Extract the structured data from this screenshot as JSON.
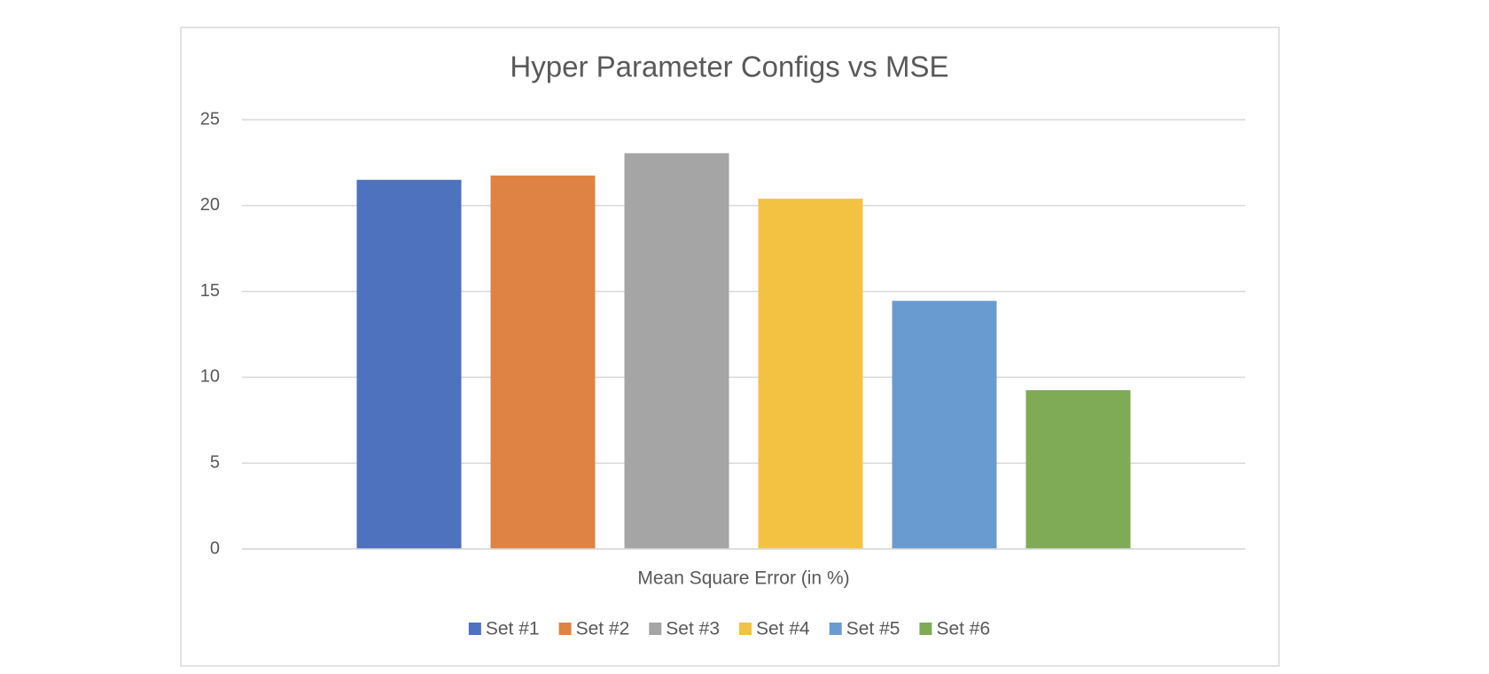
{
  "chart_data": {
    "type": "bar",
    "title": "Hyper Parameter Configs vs MSE",
    "categories": [
      "Mean Square Error (in %)"
    ],
    "series": [
      {
        "name": "Set #1",
        "color": "#4f72be",
        "values": [
          21.5
        ]
      },
      {
        "name": "Set #2",
        "color": "#de8344",
        "values": [
          21.75
        ]
      },
      {
        "name": "Set #3",
        "color": "#a5a5a5",
        "values": [
          23.05
        ]
      },
      {
        "name": "Set #4",
        "color": "#f4c243",
        "values": [
          20.4
        ]
      },
      {
        "name": "Set #5",
        "color": "#6a9bd0",
        "values": [
          14.45
        ]
      },
      {
        "name": "Set #6",
        "color": "#7fab57",
        "values": [
          9.25
        ]
      }
    ],
    "ylim": [
      0,
      25
    ],
    "yticks": [
      0,
      5,
      10,
      15,
      20,
      25
    ],
    "grid": true,
    "legend": "bottom"
  }
}
